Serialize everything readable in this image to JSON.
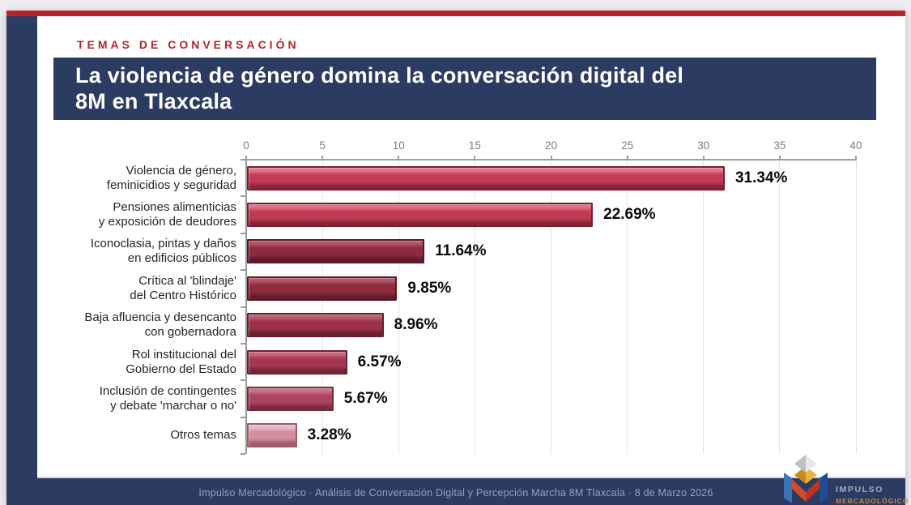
{
  "page": {
    "kicker": "TEMAS DE CONVERSACIÓN",
    "title_lines": [
      "La violencia de género domina la conversación digital del",
      "8M en Tlaxcala"
    ],
    "footer": "Impulso Mercadológico  ·  Análisis de Conversación Digital y Percepción Marcha 8M Tlaxcala  ·  8 de Marzo 2026",
    "logo": {
      "line1": "IMPULSO",
      "line2": "MERCADOLÓGICO"
    }
  },
  "colors": {
    "accent_red": "#B8232E",
    "navy": "#2B3B62",
    "page_bg": "#EEEEF2",
    "axis": "#9C9C9C",
    "gridline": "#E3E3E7",
    "tick_text": "#7D7D7D",
    "category_text": "#262626",
    "value_text": "#0A0A0A",
    "footer_text": "#97A0BB"
  },
  "chart_data": {
    "type": "bar",
    "orientation": "horizontal",
    "title": "La violencia de género domina la conversación digital del 8M en Tlaxcala",
    "xlabel": "",
    "ylabel": "",
    "xlim": [
      0,
      40
    ],
    "xticks": [
      0,
      5,
      10,
      15,
      20,
      25,
      30,
      35,
      40
    ],
    "grid": true,
    "categories": [
      "Violencia de género, feminicidios y seguridad",
      "Pensiones alimenticias y exposición de deudores",
      "Iconoclasia, pintas y daños en edificios públicos",
      "Crítica al 'blindaje' del Centro Histórico",
      "Baja afluencia y desencanto con gobernadora",
      "Rol institucional del Gobierno del Estado",
      "Inclusión de contingentes y debate 'marchar o no'",
      "Otros temas"
    ],
    "category_lines": [
      [
        "Violencia de género,",
        "feminicidios y seguridad"
      ],
      [
        "Pensiones alimenticias",
        "y exposición de deudores"
      ],
      [
        "Iconoclasia, pintas y daños",
        "en edificios públicos"
      ],
      [
        "Crítica al 'blindaje'",
        "del Centro Histórico"
      ],
      [
        "Baja afluencia y desencanto",
        "con gobernadora"
      ],
      [
        "Rol institucional del",
        "Gobierno del Estado"
      ],
      [
        "Inclusión de contingentes",
        "y debate 'marchar o no'"
      ],
      [
        "Otros temas"
      ]
    ],
    "values": [
      31.34,
      22.69,
      11.64,
      9.85,
      8.96,
      6.57,
      5.67,
      3.28
    ],
    "value_labels": [
      "31.34%",
      "22.69%",
      "11.64%",
      "9.85%",
      "8.96%",
      "6.57%",
      "5.67%",
      "3.28%"
    ],
    "bar_colors": [
      {
        "base": "#C23B54",
        "light": "#E0758A",
        "dark": "#8A2238",
        "border": "#7A1F30"
      },
      {
        "base": "#C23B54",
        "light": "#E0758A",
        "dark": "#8A2238",
        "border": "#7A1F30"
      },
      {
        "base": "#8E2B3E",
        "light": "#B4556A",
        "dark": "#631A2A",
        "border": "#571623"
      },
      {
        "base": "#8E2B3E",
        "light": "#B4556A",
        "dark": "#631A2A",
        "border": "#571623"
      },
      {
        "base": "#9C3249",
        "light": "#C05E72",
        "dark": "#6E1F31",
        "border": "#61202E"
      },
      {
        "base": "#A43853",
        "light": "#C6647B",
        "dark": "#752538",
        "border": "#6B2134"
      },
      {
        "base": "#AC4560",
        "light": "#CE7289",
        "dark": "#7C2C42",
        "border": "#702B3D"
      },
      {
        "base": "#D08FA0",
        "light": "#E9BBC6",
        "dark": "#A65A6C",
        "border": "#9A5B6A"
      }
    ]
  }
}
